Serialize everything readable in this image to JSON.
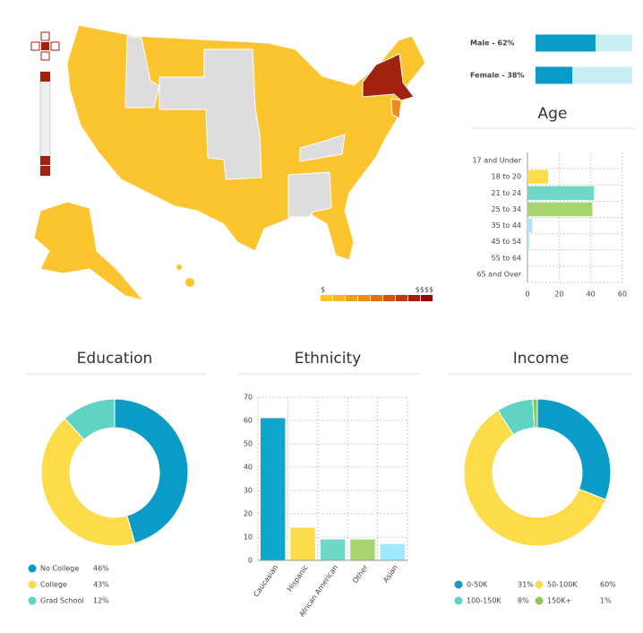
{
  "map": {
    "legend_labels": [
      "$",
      "$$$$"
    ],
    "legend_colors": [
      "#fcc52f",
      "#f8b52a",
      "#f2a025",
      "#ea8a20",
      "#dd701b",
      "#cc5516",
      "#b83b12",
      "#a3220e",
      "#8e0b0b"
    ]
  },
  "chart_data": [
    {
      "type": "hbar",
      "categories": [
        "Male - 62%",
        "Female - 38%"
      ],
      "values": [
        62,
        38
      ],
      "color": "#0a9cc7",
      "xlim": [
        0,
        100
      ]
    },
    {
      "type": "hbar",
      "title": "Age",
      "categories": [
        "17 and Under",
        "18 to 20",
        "21 to 24",
        "25 to 34",
        "35 to 44",
        "45 to 54",
        "55 to 64",
        "65 and Over"
      ],
      "values": [
        0,
        13,
        42,
        41,
        3,
        1,
        0,
        0
      ],
      "colors": [
        "#fddc4a",
        "#fddc4a",
        "#6fd8c8",
        "#a6d46e",
        "#a5e8f7",
        "#a5e8f7",
        "#a5e8f7",
        "#a5e8f7"
      ],
      "xlim": [
        0,
        60
      ],
      "xticks": [
        0,
        20,
        40,
        60
      ],
      "grid": true
    },
    {
      "type": "donut",
      "title": "Education",
      "categories": [
        "No College",
        "College",
        "Grad School"
      ],
      "values": [
        46,
        43,
        12
      ],
      "value_labels": [
        "46%",
        "43%",
        "12%"
      ],
      "colors": [
        "#0a9cc7",
        "#fddc4a",
        "#5fd3c4"
      ]
    },
    {
      "type": "bar",
      "title": "Ethnicity",
      "categories": [
        "Caucasian",
        "Hispanic",
        "African American",
        "Other",
        "Asian"
      ],
      "values": [
        61,
        14,
        9,
        9,
        7
      ],
      "colors": [
        "#0ea5cc",
        "#fddc4a",
        "#6fd8c8",
        "#a6d46e",
        "#9ee9fb"
      ],
      "ylim": [
        0,
        70
      ],
      "yticks": [
        0,
        10,
        20,
        30,
        40,
        50,
        60,
        70
      ],
      "grid": true
    },
    {
      "type": "donut",
      "title": "Income",
      "categories": [
        "0-50K",
        "50-100K",
        "100-150K",
        "150K+"
      ],
      "values": [
        31,
        60,
        8,
        1
      ],
      "value_labels": [
        "31%",
        "60%",
        "8%",
        "1%"
      ],
      "colors": [
        "#0a9cc7",
        "#fddc4a",
        "#5fd3c4",
        "#8fc75a"
      ]
    }
  ]
}
